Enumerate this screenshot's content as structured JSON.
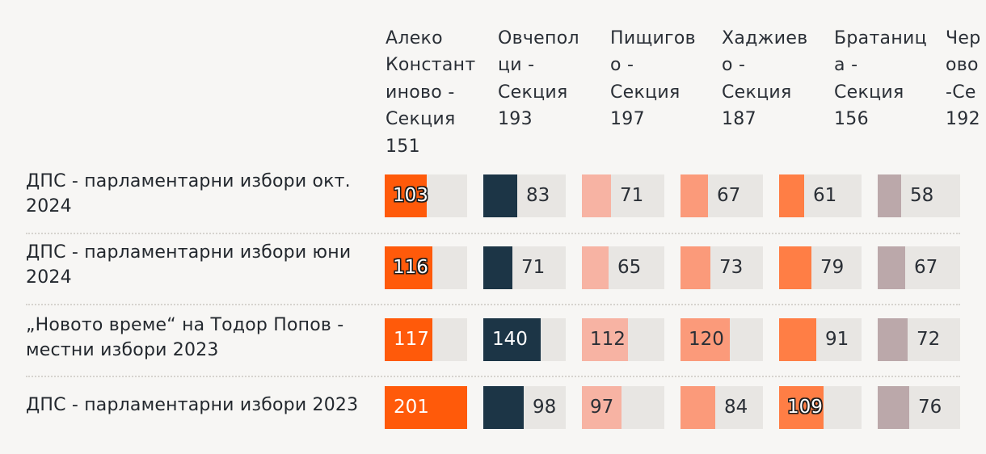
{
  "chart_data": {
    "type": "table",
    "title": "",
    "value_scale_max": 201,
    "columns": [
      {
        "label": "Алеко\nКонстант\nиново -\nСекция\n151",
        "color": "#ff5a0a"
      },
      {
        "label": "Овчепол\nци -\nСекция\n193",
        "color": "#1c3546"
      },
      {
        "label": "Пищигов\nо -\nСекция\n197",
        "color": "#f7b3a3"
      },
      {
        "label": "Хаджиев\nо -\nСекция\n187",
        "color": "#fb9a7a"
      },
      {
        "label": "Братаниц\nа -\nСекция\n156",
        "color": "#ff7e45"
      },
      {
        "label": "Чер\nово\n-Се\n192",
        "color": "#bba8aa"
      }
    ],
    "rows": [
      {
        "label": "ДПС - парламентарни избори окт.\n2024",
        "values": [
          103,
          83,
          71,
          67,
          61,
          58
        ]
      },
      {
        "label": "ДПС - парламентарни избори юни\n2024",
        "values": [
          116,
          71,
          65,
          73,
          79,
          67
        ]
      },
      {
        "label": "„Новото време“ на Тодор Попов -\nместни избори 2023",
        "values": [
          117,
          140,
          112,
          120,
          91,
          72
        ]
      },
      {
        "label": "ДПС - парламентарни избори 2023",
        "values": [
          201,
          98,
          97,
          84,
          109,
          76
        ]
      }
    ],
    "value_label_styles": [
      [
        "outlined",
        "outside",
        "outside",
        "outside",
        "outside",
        "outside"
      ],
      [
        "outlined",
        "outside",
        "outside",
        "outside",
        "outside",
        "outside"
      ],
      [
        "inside",
        "inside",
        "dark-inside",
        "dark-inside",
        "outside",
        "outside"
      ],
      [
        "inside",
        "outside",
        "dark-inside",
        "outside",
        "outlined",
        "outside"
      ]
    ]
  }
}
